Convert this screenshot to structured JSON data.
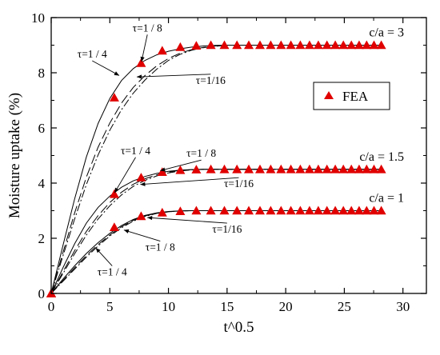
{
  "chart_data": {
    "type": "line",
    "xlabel": "t^0.5",
    "ylabel": "Moisture uptake (%)",
    "xlim": [
      0,
      32
    ],
    "ylim": [
      0,
      10
    ],
    "xticks": [
      "0",
      "5",
      "10",
      "15",
      "20",
      "25",
      "30"
    ],
    "yticks": [
      "0",
      "2",
      "4",
      "6",
      "8",
      "10"
    ],
    "grid": false,
    "legend": {
      "position": "right",
      "entries": [
        {
          "label": "FEA",
          "marker": "triangle",
          "color": "#e00000"
        }
      ]
    },
    "fea_x": [
      0,
      5.38,
      7.67,
      9.47,
      11.01,
      12.38,
      13.62,
      14.77,
      15.84,
      16.85,
      17.81,
      18.72,
      19.6,
      20.44,
      21.25,
      22.03,
      22.78,
      23.52,
      24.23,
      24.92,
      25.6,
      26.26,
      26.9,
      27.53,
      28.15
    ],
    "groups": [
      {
        "label": "c/a = 3",
        "equilibrium": 9.0,
        "fea_y": [
          0,
          7.1,
          8.35,
          8.8,
          8.93,
          8.98,
          9.0,
          9.0,
          9.0,
          9.0,
          9.0,
          9.0,
          9.0,
          9.0,
          9.0,
          9.0,
          9.0,
          9.0,
          9.0,
          9.0,
          9.0,
          9.0,
          9.0,
          9.0,
          9.0
        ],
        "curves": [
          {
            "tau": "τ=1 / 4",
            "style": "solid",
            "x": [
              0,
              1,
              2,
              3,
              4,
              5,
              6,
              7,
              8,
              9,
              10,
              11,
              12,
              13,
              14,
              15,
              28.3
            ],
            "y": [
              0,
              1.74,
              3.43,
              4.95,
              6.16,
              7.07,
              7.72,
              8.15,
              8.45,
              8.65,
              8.78,
              8.87,
              8.93,
              8.97,
              8.99,
              9.0,
              9.0
            ]
          },
          {
            "tau": "τ=1 / 8",
            "style": "dashed",
            "x": [
              0,
              1,
              2,
              3,
              4,
              5,
              6,
              7,
              8,
              9,
              10,
              11,
              12,
              13,
              14,
              15,
              28.3
            ],
            "y": [
              0,
              1.48,
              2.92,
              4.22,
              5.3,
              6.18,
              6.9,
              7.47,
              7.9,
              8.25,
              8.52,
              8.71,
              8.84,
              8.92,
              8.97,
              9.0,
              9.0
            ]
          },
          {
            "tau": "τ=1/16",
            "style": "dashdot",
            "x": [
              0,
              1,
              2,
              3,
              4,
              5,
              6,
              7,
              8,
              9,
              10,
              11,
              12,
              13,
              14,
              15,
              28.3
            ],
            "y": [
              0,
              1.36,
              2.7,
              3.95,
              5.02,
              5.92,
              6.66,
              7.26,
              7.74,
              8.13,
              8.45,
              8.67,
              8.82,
              8.91,
              8.96,
              9.0,
              9.0
            ]
          }
        ]
      },
      {
        "label": "c/a = 1.5",
        "equilibrium": 4.5,
        "fea_y": [
          0,
          3.6,
          4.2,
          4.4,
          4.47,
          4.49,
          4.5,
          4.5,
          4.5,
          4.5,
          4.5,
          4.5,
          4.5,
          4.5,
          4.5,
          4.5,
          4.5,
          4.5,
          4.5,
          4.5,
          4.5,
          4.5,
          4.5,
          4.5,
          4.5
        ],
        "curves": [
          {
            "tau": "τ=1 / 4",
            "style": "solid",
            "x": [
              0,
              1,
              2,
              3,
              4,
              5,
              6,
              7,
              8,
              9,
              10,
              11,
              12,
              13,
              28.3
            ],
            "y": [
              0,
              0.93,
              1.8,
              2.55,
              3.12,
              3.53,
              3.85,
              4.08,
              4.24,
              4.35,
              4.43,
              4.47,
              4.49,
              4.5,
              4.5
            ]
          },
          {
            "tau": "τ=1 / 8",
            "style": "dashed",
            "x": [
              0,
              1,
              2,
              3,
              4,
              5,
              6,
              7,
              8,
              9,
              10,
              11,
              12,
              13,
              28.3
            ],
            "y": [
              0,
              0.78,
              1.55,
              2.25,
              2.82,
              3.3,
              3.67,
              3.96,
              4.16,
              4.3,
              4.4,
              4.46,
              4.49,
              4.5,
              4.5
            ]
          },
          {
            "tau": "τ=1/16",
            "style": "dashdot",
            "x": [
              0,
              1,
              2,
              3,
              4,
              5,
              6,
              7,
              8,
              9,
              10,
              11,
              12,
              13,
              28.3
            ],
            "y": [
              0,
              0.72,
              1.44,
              2.12,
              2.7,
              3.18,
              3.57,
              3.88,
              4.1,
              4.26,
              4.37,
              4.44,
              4.48,
              4.5,
              4.5
            ]
          }
        ]
      },
      {
        "label": "c/a = 1",
        "equilibrium": 3.0,
        "fea_y": [
          0,
          2.4,
          2.8,
          2.93,
          2.98,
          3.0,
          3.0,
          3.0,
          3.0,
          3.0,
          3.0,
          3.0,
          3.0,
          3.0,
          3.0,
          3.0,
          3.0,
          3.0,
          3.0,
          3.0,
          3.0,
          3.0,
          3.0,
          3.0,
          3.0
        ],
        "curves": [
          {
            "tau": "τ=1 / 4",
            "style": "solid",
            "x": [
              0,
              1,
              2,
              3,
              4,
              5,
              6,
              7,
              8,
              9,
              10,
              11,
              12,
              28.3
            ],
            "y": [
              0,
              0.52,
              1.0,
              1.45,
              1.84,
              2.18,
              2.46,
              2.68,
              2.83,
              2.92,
              2.97,
              2.99,
              3.0,
              3.0
            ]
          },
          {
            "tau": "τ=1 / 8",
            "style": "dashed",
            "x": [
              0,
              1,
              2,
              3,
              4,
              5,
              6,
              7,
              8,
              9,
              10,
              11,
              12,
              28.3
            ],
            "y": [
              0,
              0.47,
              0.93,
              1.37,
              1.77,
              2.12,
              2.42,
              2.65,
              2.81,
              2.91,
              2.96,
              2.99,
              3.0,
              3.0
            ]
          },
          {
            "tau": "τ=1/16",
            "style": "dashdot",
            "x": [
              0,
              1,
              2,
              3,
              4,
              5,
              6,
              7,
              8,
              9,
              10,
              11,
              12,
              28.3
            ],
            "y": [
              0,
              0.44,
              0.88,
              1.32,
              1.72,
              2.08,
              2.38,
              2.62,
              2.79,
              2.9,
              2.96,
              2.99,
              3.0,
              3.0
            ]
          }
        ]
      }
    ],
    "annotations": [
      {
        "text": "τ=1 / 8",
        "x": 8.2,
        "y": 9.5,
        "ax": 7.7,
        "ay": 8.4
      },
      {
        "text": "τ=1 / 4",
        "x": 3.5,
        "y": 8.55,
        "ax": 5.8,
        "ay": 7.9
      },
      {
        "text": "τ=1/16",
        "x": 13.6,
        "y": 7.6,
        "ax": 7.3,
        "ay": 7.85
      },
      {
        "text": "τ=1 / 8",
        "x": 12.8,
        "y": 4.95,
        "ax": 9.3,
        "ay": 4.45
      },
      {
        "text": "τ=1 / 4",
        "x": 7.2,
        "y": 5.05,
        "ax": 5.4,
        "ay": 3.65
      },
      {
        "text": "τ=1/16",
        "x": 16.0,
        "y": 3.85,
        "ax": 7.6,
        "ay": 3.95
      },
      {
        "text": "τ=1/16",
        "x": 15.0,
        "y": 2.2,
        "ax": 8.2,
        "ay": 2.75
      },
      {
        "text": "τ=1 / 8",
        "x": 9.3,
        "y": 1.55,
        "ax": 6.2,
        "ay": 2.3
      },
      {
        "text": "τ=1 / 4",
        "x": 5.2,
        "y": 0.65,
        "ax": 3.8,
        "ay": 1.65
      }
    ]
  }
}
